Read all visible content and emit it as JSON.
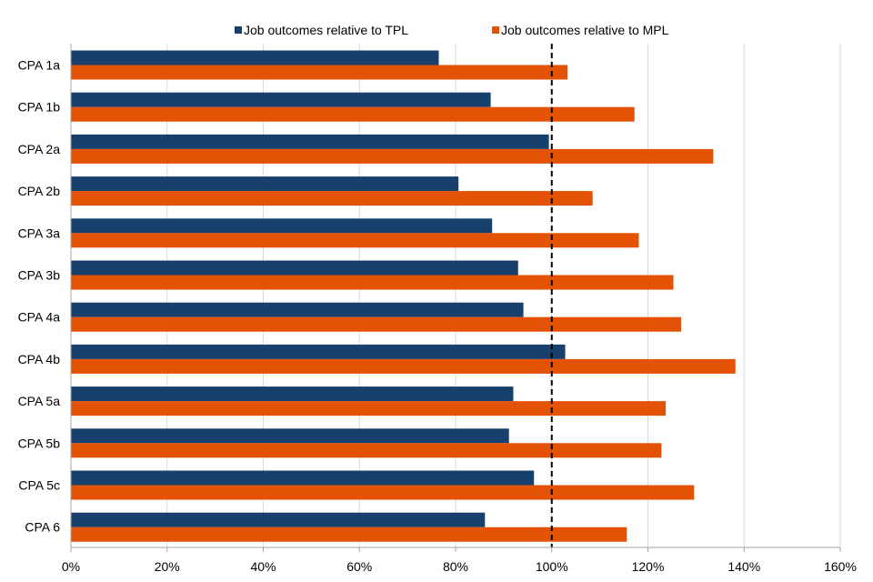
{
  "chart_data": {
    "type": "bar",
    "orientation": "horizontal",
    "categories": [
      "CPA 1a",
      "CPA 1b",
      "CPA 2a",
      "CPA 2b",
      "CPA 3a",
      "CPA 3b",
      "CPA 4a",
      "CPA 4b",
      "CPA 5a",
      "CPA 5b",
      "CPA 5c",
      "CPA 6"
    ],
    "series": [
      {
        "name": "Job outcomes relative to TPL",
        "color": "#17406D",
        "values": [
          76.5,
          87.3,
          99.4,
          80.6,
          87.6,
          93.0,
          94.1,
          102.8,
          92.0,
          91.1,
          96.3,
          86.1
        ]
      },
      {
        "name": "Job outcomes relative to MPL",
        "color": "#E35205",
        "values": [
          103.3,
          117.2,
          133.6,
          108.5,
          118.1,
          125.3,
          126.9,
          138.2,
          123.7,
          122.8,
          129.6,
          115.6
        ]
      }
    ],
    "xlim": [
      0,
      160
    ],
    "x_ticks": [
      0,
      20,
      40,
      60,
      80,
      100,
      120,
      140,
      160
    ],
    "x_tick_labels": [
      "0%",
      "20%",
      "40%",
      "60%",
      "80%",
      "100%",
      "120%",
      "140%",
      "160%"
    ],
    "reference_line": {
      "value": 100,
      "style": "dashed"
    },
    "grid": "vertical",
    "legend": "top-center"
  }
}
